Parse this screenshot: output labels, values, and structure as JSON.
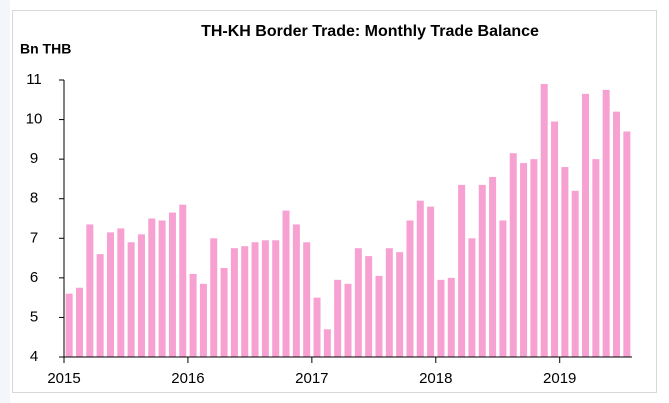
{
  "chart_data": {
    "type": "bar",
    "title": "TH-KH Border Trade: Monthly Trade Balance",
    "y_label": "Bn THB",
    "categories": [
      "2015",
      null,
      null,
      null,
      null,
      null,
      null,
      null,
      null,
      null,
      null,
      null,
      "2016",
      null,
      null,
      null,
      null,
      null,
      null,
      null,
      null,
      null,
      null,
      null,
      "2017",
      null,
      null,
      null,
      null,
      null,
      null,
      null,
      null,
      null,
      null,
      null,
      "2018",
      null,
      null,
      null,
      null,
      null,
      null,
      null,
      null,
      null,
      null,
      null,
      "2019",
      null,
      null,
      null,
      null,
      null,
      null
    ],
    "values": [
      5.6,
      5.75,
      7.35,
      6.6,
      7.15,
      7.25,
      6.9,
      7.1,
      7.5,
      7.45,
      7.65,
      7.85,
      6.1,
      5.85,
      7.0,
      6.25,
      6.75,
      6.8,
      6.9,
      6.95,
      6.95,
      7.7,
      7.35,
      6.9,
      5.5,
      4.7,
      5.95,
      5.85,
      6.75,
      6.55,
      6.05,
      6.75,
      6.65,
      7.45,
      7.95,
      7.8,
      5.95,
      6.0,
      8.35,
      7.0,
      8.35,
      8.55,
      7.45,
      9.15,
      8.9,
      9.0,
      10.9,
      9.95,
      8.8,
      8.2,
      10.65,
      9.0,
      10.75,
      10.2,
      9.7
    ],
    "color": "#f7a1d2",
    "ylim": [
      4,
      11
    ],
    "yticks": [
      4,
      5,
      6,
      7,
      8,
      9,
      10,
      11
    ],
    "grid": false
  }
}
